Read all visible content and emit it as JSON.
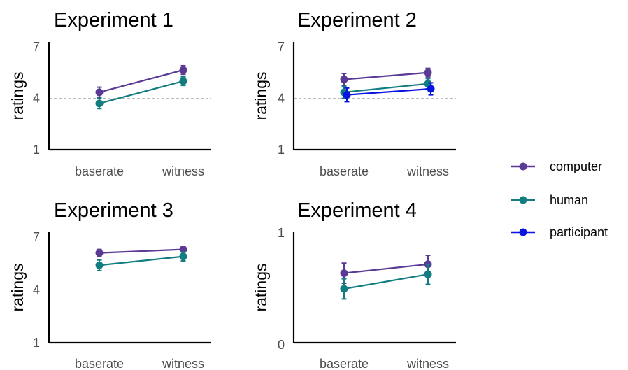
{
  "chart_data": [
    {
      "type": "line",
      "title": "Experiment 1",
      "xlabel": "",
      "ylabel": "ratings",
      "categories": [
        "baserate",
        "witness"
      ],
      "ylim": [
        1,
        7
      ],
      "yticks": [
        "1",
        "4",
        "7"
      ],
      "reference_line": 4,
      "series": [
        {
          "name": "computer",
          "values": [
            4.35,
            5.65
          ],
          "error": [
            0.3,
            0.25
          ]
        },
        {
          "name": "human",
          "values": [
            3.7,
            5.0
          ],
          "error": [
            0.3,
            0.25
          ]
        }
      ]
    },
    {
      "type": "line",
      "title": "Experiment 2",
      "xlabel": "",
      "ylabel": "ratings",
      "categories": [
        "baserate",
        "witness"
      ],
      "ylim": [
        1,
        7
      ],
      "yticks": [
        "1",
        "4",
        "7"
      ],
      "reference_line": 4,
      "series": [
        {
          "name": "computer",
          "values": [
            5.1,
            5.5
          ],
          "error": [
            0.35,
            0.25
          ]
        },
        {
          "name": "human",
          "values": [
            4.35,
            4.85
          ],
          "error": [
            0.35,
            0.3
          ]
        },
        {
          "name": "participant",
          "values": [
            4.2,
            4.55
          ],
          "error": [
            0.4,
            0.35
          ]
        }
      ]
    },
    {
      "type": "line",
      "title": "Experiment 3",
      "xlabel": "",
      "ylabel": "ratings",
      "categories": [
        "baserate",
        "witness"
      ],
      "ylim": [
        1,
        7
      ],
      "yticks": [
        "1",
        "4",
        "7"
      ],
      "reference_line": 4,
      "series": [
        {
          "name": "computer",
          "values": [
            6.1,
            6.3
          ],
          "error": [
            0.2,
            0.15
          ]
        },
        {
          "name": "human",
          "values": [
            5.4,
            5.9
          ],
          "error": [
            0.3,
            0.25
          ]
        }
      ]
    },
    {
      "type": "line",
      "title": "Experiment 4",
      "xlabel": "",
      "ylabel": "ratings",
      "categories": [
        "baserate",
        "witness"
      ],
      "ylim": [
        0,
        1
      ],
      "yticks": [
        "0",
        "1"
      ],
      "series": [
        {
          "name": "computer",
          "values": [
            0.64,
            0.72
          ],
          "error": [
            0.09,
            0.08
          ]
        },
        {
          "name": "human",
          "values": [
            0.5,
            0.63
          ],
          "error": [
            0.09,
            0.09
          ]
        }
      ]
    }
  ],
  "legend": {
    "position": "right",
    "entries": [
      "computer",
      "human",
      "participant"
    ]
  },
  "colors": {
    "computer": "#5b3a96",
    "human": "#127d80",
    "participant": "#0a14e0",
    "axis": "#000000",
    "tick_label": "#4d4d4d",
    "reference_line": "#bbbbbb"
  }
}
